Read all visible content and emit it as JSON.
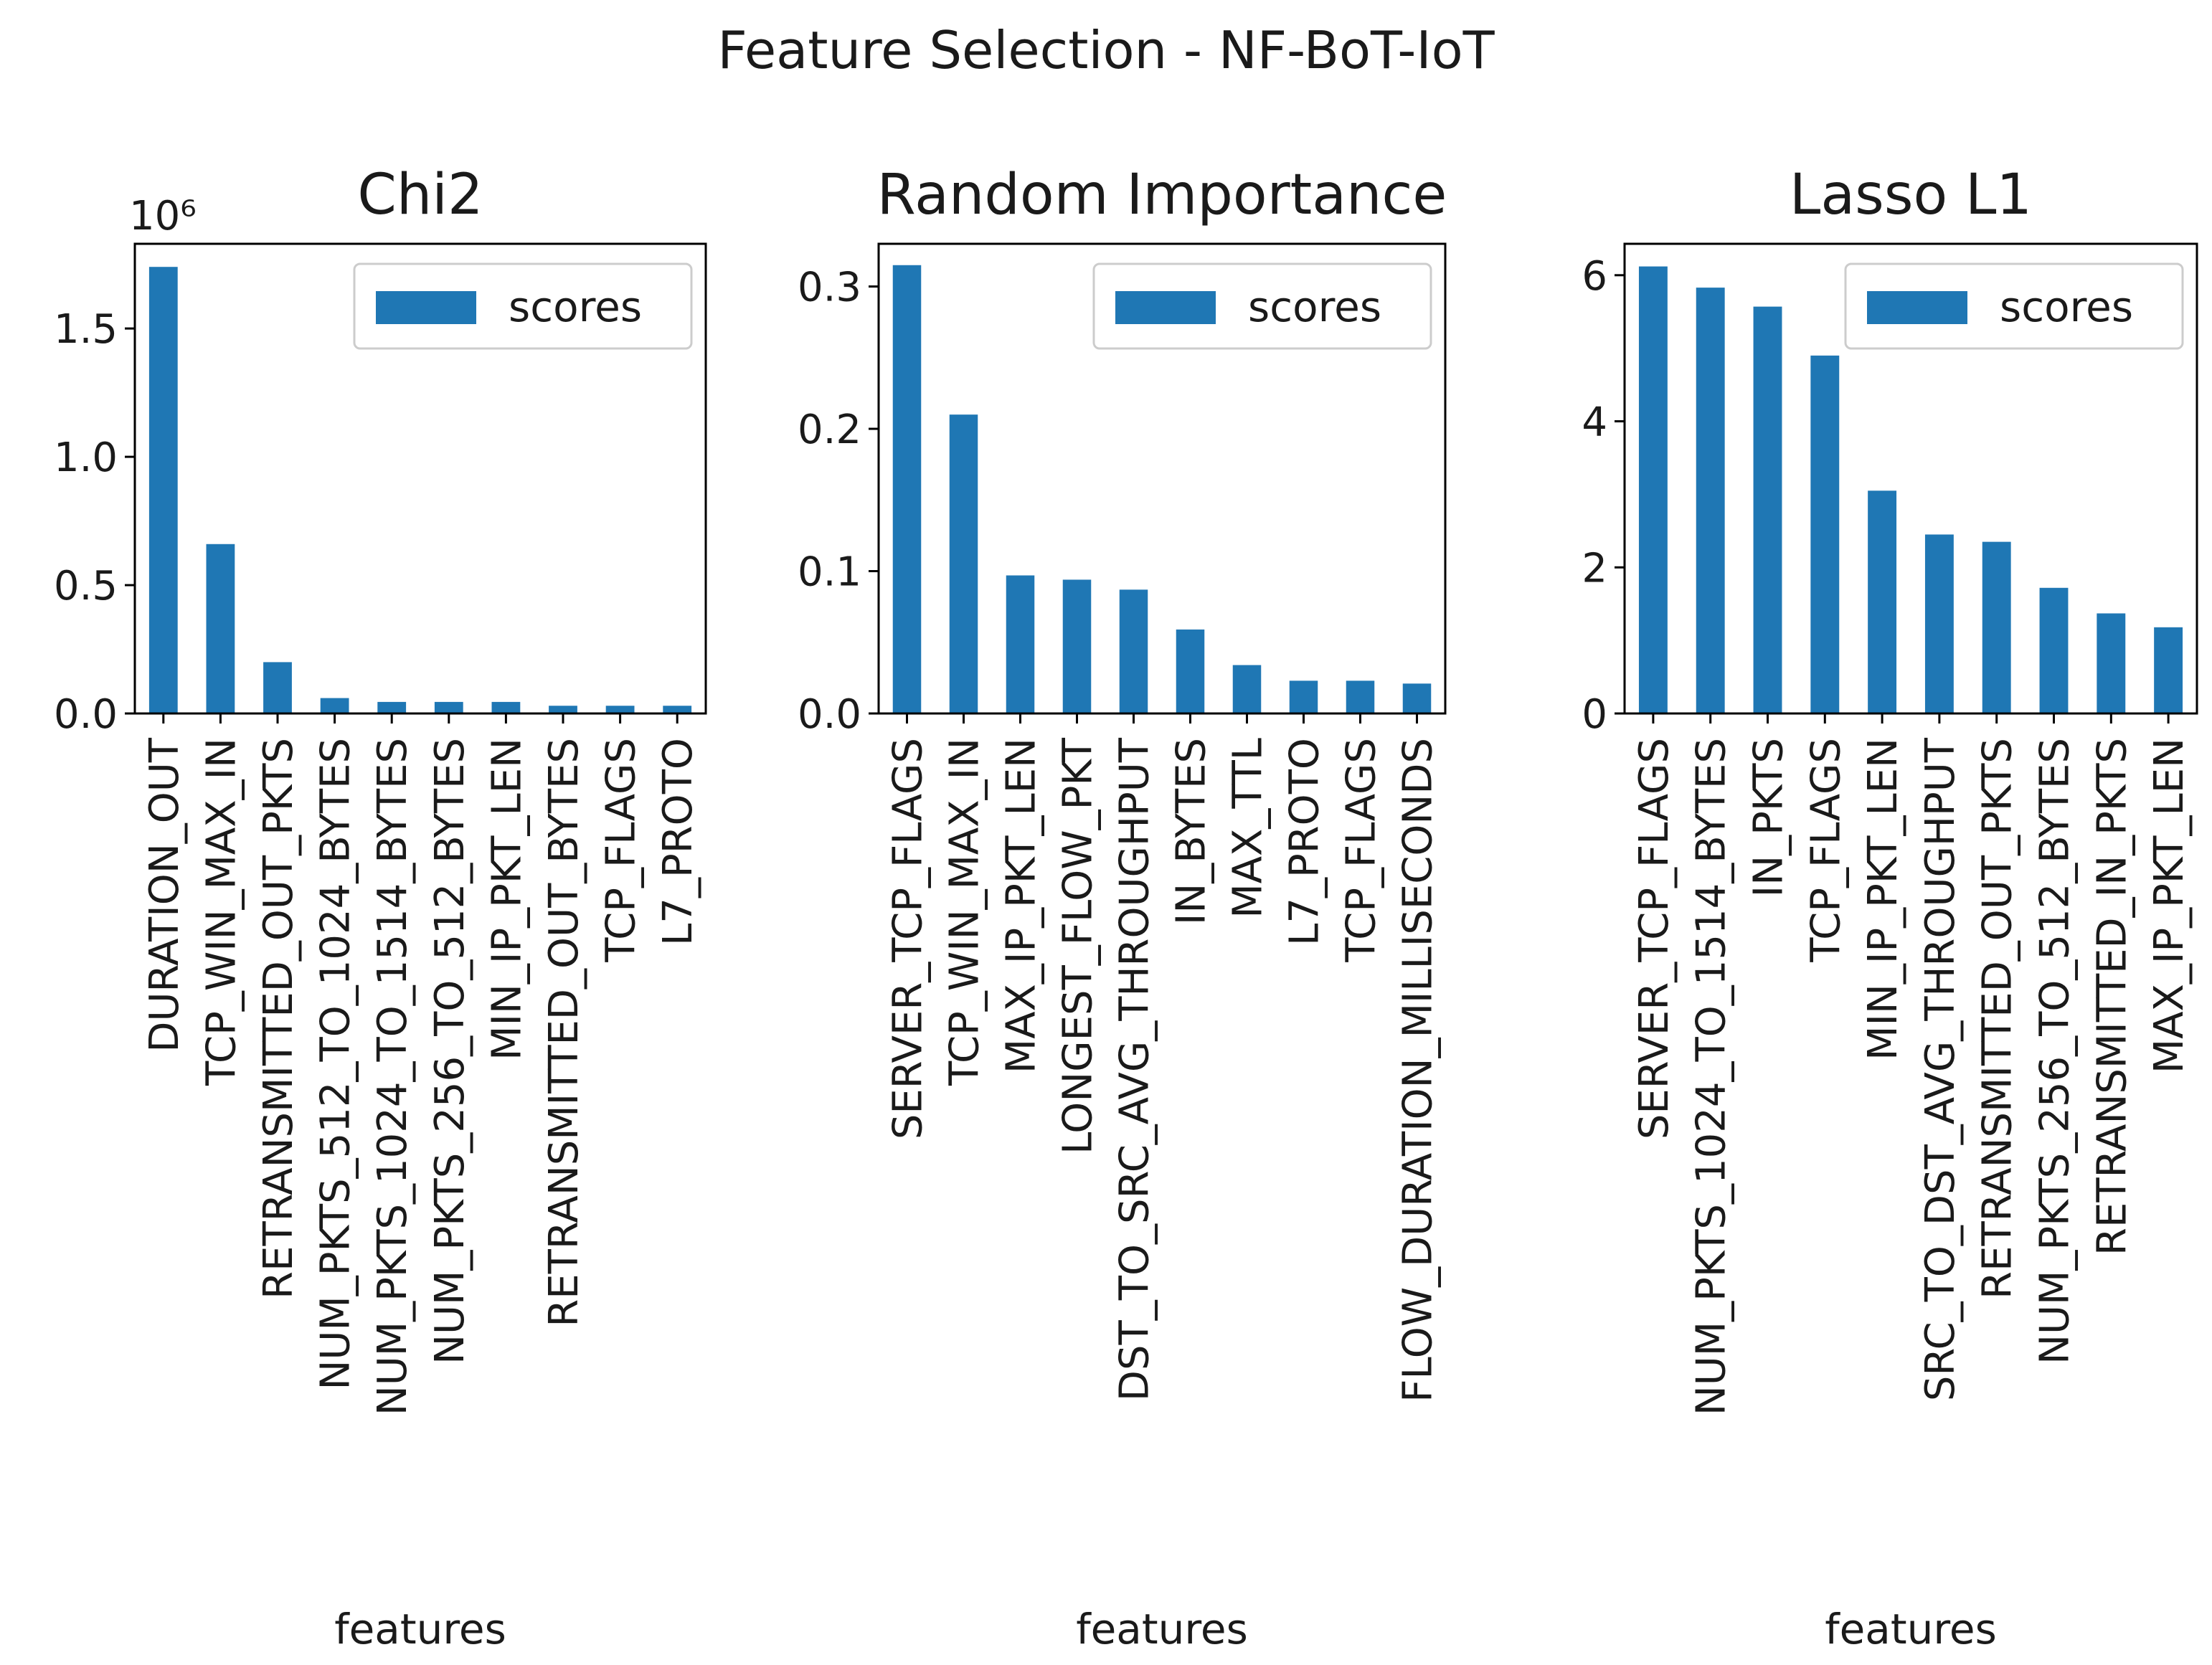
{
  "figure_title": "Feature Selection - NF-BoT-IoT",
  "colors": {
    "bar": "#1f77b4",
    "axis": "#000000",
    "legend_border": "#cccccc"
  },
  "chart_data": [
    {
      "type": "bar",
      "title": "Chi2",
      "xlabel": "features",
      "ylabel": "",
      "y_offset_label": "10⁶",
      "legend": [
        "scores"
      ],
      "legend_loc": "upper right",
      "ylim": [
        0,
        1.83
      ],
      "yticks": [
        0.0,
        0.5,
        1.0,
        1.5
      ],
      "ytick_labels": [
        "0.0",
        "0.5",
        "1.0",
        "1.5"
      ],
      "categories": [
        "DURATION_OUT",
        "TCP_WIN_MAX_IN",
        "RETRANSMITTED_OUT_PKTS",
        "NUM_PKTS_512_TO_1024_BYTES",
        "NUM_PKTS_1024_TO_1514_BYTES",
        "NUM_PKTS_256_TO_512_BYTES",
        "MIN_IP_PKT_LEN",
        "RETRANSMITTED_OUT_BYTES",
        "TCP_FLAGS",
        "L7_PROTO"
      ],
      "values": [
        1.74,
        0.66,
        0.2,
        0.06,
        0.045,
        0.045,
        0.045,
        0.03,
        0.03,
        0.03
      ]
    },
    {
      "type": "bar",
      "title": "Random Importance",
      "xlabel": "features",
      "ylabel": "",
      "legend": [
        "scores"
      ],
      "legend_loc": "upper right",
      "ylim": [
        0,
        0.33
      ],
      "yticks": [
        0.0,
        0.1,
        0.2,
        0.3
      ],
      "ytick_labels": [
        "0.0",
        "0.1",
        "0.2",
        "0.3"
      ],
      "categories": [
        "SERVER_TCP_FLAGS",
        "TCP_WIN_MAX_IN",
        "MAX_IP_PKT_LEN",
        "LONGEST_FLOW_PKT",
        "DST_TO_SRC_AVG_THROUGHPUT",
        "IN_BYTES",
        "MAX_TTL",
        "L7_PROTO",
        "TCP_FLAGS",
        "FLOW_DURATION_MILLISECONDS"
      ],
      "values": [
        0.315,
        0.21,
        0.097,
        0.094,
        0.087,
        0.059,
        0.034,
        0.023,
        0.023,
        0.021
      ]
    },
    {
      "type": "bar",
      "title": "Lasso L1",
      "xlabel": "features",
      "ylabel": "",
      "legend": [
        "scores"
      ],
      "legend_loc": "upper right",
      "ylim": [
        0,
        6.43
      ],
      "yticks": [
        0,
        2,
        4,
        6
      ],
      "ytick_labels": [
        "0",
        "2",
        "4",
        "6"
      ],
      "categories": [
        "SERVER_TCP_FLAGS",
        "NUM_PKTS_1024_TO_1514_BYTES",
        "IN_PKTS",
        "TCP_FLAGS",
        "MIN_IP_PKT_LEN",
        "SRC_TO_DST_AVG_THROUGHPUT",
        "RETRANSMITTED_OUT_PKTS",
        "NUM_PKTS_256_TO_512_BYTES",
        "RETRANSMITTED_IN_PKTS",
        "MAX_IP_PKT_LEN"
      ],
      "values": [
        6.12,
        5.83,
        5.57,
        4.9,
        3.05,
        2.45,
        2.35,
        1.72,
        1.37,
        1.18
      ]
    }
  ]
}
